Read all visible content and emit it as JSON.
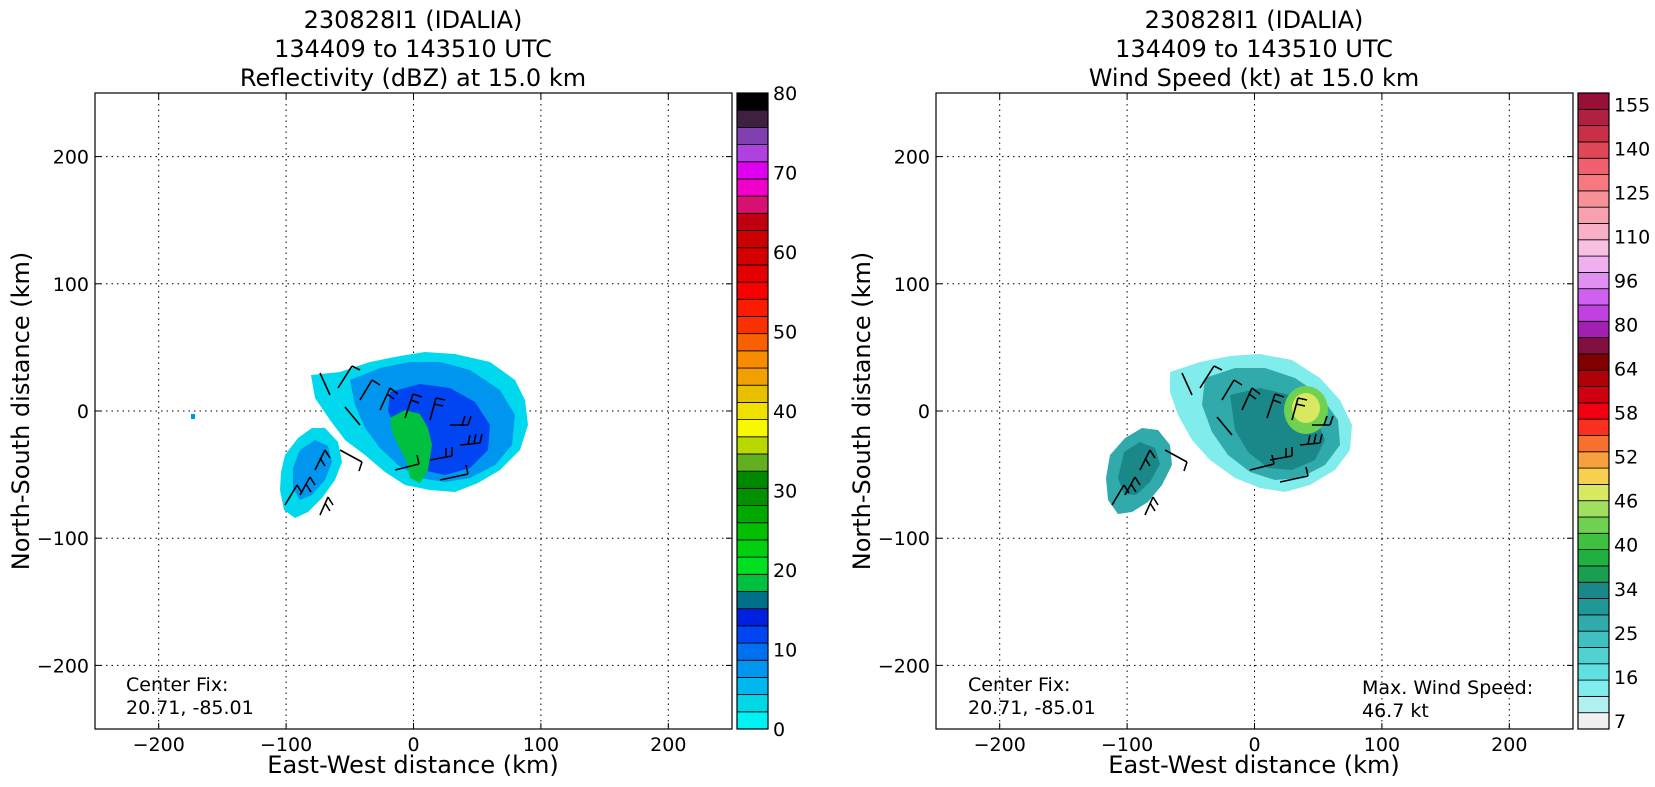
{
  "chart_data": [
    {
      "type": "heatmap",
      "title_lines": [
        "230828I1 (IDALIA)",
        "134409 to 143510 UTC",
        "Reflectivity (dBZ) at 15.0 km"
      ],
      "xlabel": "East-West distance (km)",
      "ylabel": "North-South distance (km)",
      "xlim": [
        -250,
        250
      ],
      "ylim": [
        -250,
        250
      ],
      "xticks": [
        -200,
        -100,
        0,
        100,
        200
      ],
      "yticks": [
        -200,
        -100,
        0,
        100,
        200
      ],
      "grid": true,
      "annotation_lines": [
        "Center Fix:",
        "20.71, -85.01"
      ],
      "colorbar": {
        "vmin": 0,
        "vmax": 80,
        "tick_labels": [
          "0",
          "10",
          "20",
          "30",
          "40",
          "50",
          "60",
          "70",
          "80"
        ],
        "colors": [
          "#00f2f2",
          "#00d8e6",
          "#00b8ee",
          "#0096f0",
          "#0070f0",
          "#0044f2",
          "#0020e0",
          "#00708a",
          "#00c040",
          "#00e020",
          "#00d010",
          "#00c000",
          "#00a800",
          "#009000",
          "#008800",
          "#60b020",
          "#b8d800",
          "#f8f800",
          "#f0e000",
          "#e8c000",
          "#f0a000",
          "#f88c00",
          "#f86000",
          "#fa3000",
          "#fa1c00",
          "#f80000",
          "#e40000",
          "#d40000",
          "#cc0000",
          "#c00010",
          "#d81070",
          "#f000c8",
          "#e000f0",
          "#b040e0",
          "#8040b0",
          "#402040",
          "#000000"
        ]
      },
      "wind_barbs_present": true
    },
    {
      "type": "heatmap",
      "title_lines": [
        "230828I1 (IDALIA)",
        "134409 to 143510 UTC",
        "Wind Speed (kt) at 15.0 km"
      ],
      "xlabel": "East-West distance (km)",
      "ylabel": "North-South distance (km)",
      "xlim": [
        -250,
        250
      ],
      "ylim": [
        -250,
        250
      ],
      "xticks": [
        -200,
        -100,
        0,
        100,
        200
      ],
      "yticks": [
        -200,
        -100,
        0,
        100,
        200
      ],
      "grid": true,
      "annotation_lines": [
        "Center Fix:",
        "20.71, -85.01"
      ],
      "max_wind_lines": [
        "Max. Wind Speed:",
        "46.7 kt"
      ],
      "max_wind_kt": 46.7,
      "colorbar": {
        "tick_labels": [
          "7",
          "16",
          "25",
          "34",
          "40",
          "46",
          "52",
          "58",
          "64",
          "80",
          "96",
          "110",
          "125",
          "140",
          "155"
        ],
        "colors": [
          "#f0f0f0",
          "#b0f0f0",
          "#80ecec",
          "#60e0e0",
          "#50d0d0",
          "#40c0c0",
          "#30aaaa",
          "#209898",
          "#1a8888",
          "#18a050",
          "#20b040",
          "#40c040",
          "#70d050",
          "#a0e060",
          "#d8e860",
          "#f8d050",
          "#f8a040",
          "#f87030",
          "#f83020",
          "#f00010",
          "#d00010",
          "#b00008",
          "#800000",
          "#801040",
          "#a020b0",
          "#c040e0",
          "#d060f0",
          "#e090f0",
          "#f0b0f0",
          "#f8c0e0",
          "#f8b0c8",
          "#f8a0b0",
          "#f89098",
          "#f87880",
          "#f06070",
          "#e04858",
          "#c83048",
          "#b02040",
          "#981038"
        ]
      },
      "wind_barbs_present": true
    }
  ]
}
